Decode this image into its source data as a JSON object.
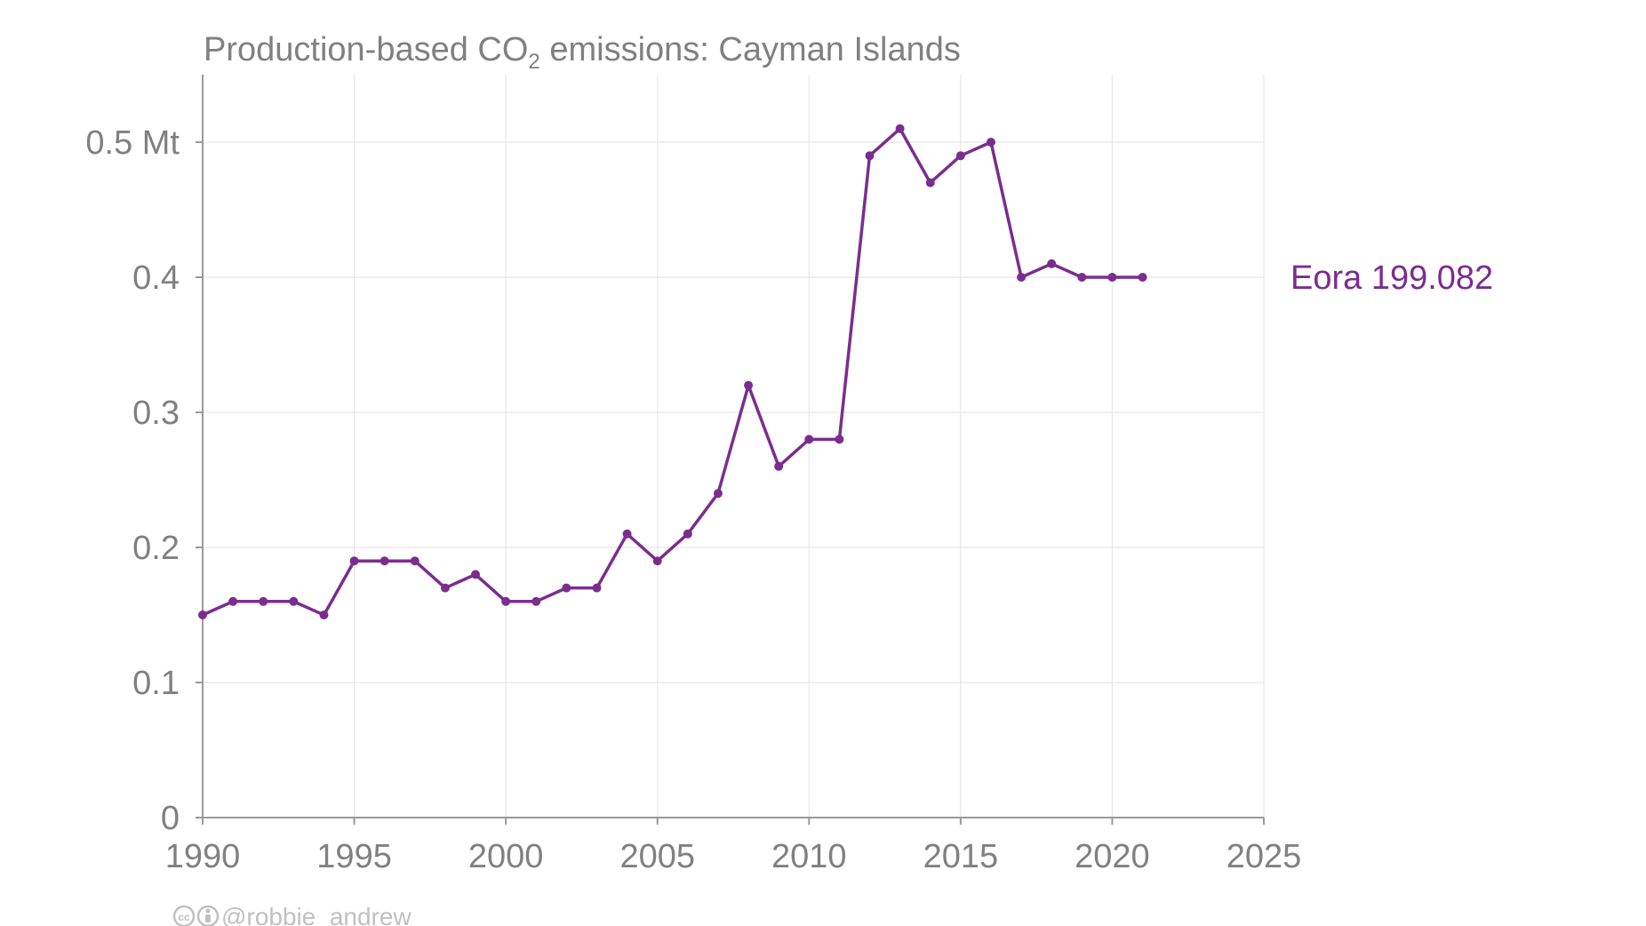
{
  "chart_data": {
    "type": "line",
    "title": {
      "prefix": "Production-based CO",
      "subscript": "2",
      "suffix": " emissions: Cayman Islands"
    },
    "xlim": [
      1990,
      2025
    ],
    "ylim": [
      0,
      0.55
    ],
    "x_ticks": [
      1990,
      1995,
      2000,
      2005,
      2010,
      2015,
      2020,
      2025
    ],
    "x_tick_labels": [
      "1990",
      "1995",
      "2000",
      "2005",
      "2010",
      "2015",
      "2020",
      "2025"
    ],
    "y_ticks": [
      0,
      0.1,
      0.2,
      0.3,
      0.4,
      0.5
    ],
    "y_tick_labels": [
      "0",
      "0.1",
      "0.2",
      "0.3",
      "0.4",
      "0.5 Mt"
    ],
    "grid": true,
    "series": [
      {
        "name": "Eora 199.082",
        "color": "#7b2d8e",
        "x": [
          1990,
          1991,
          1992,
          1993,
          1994,
          1995,
          1996,
          1997,
          1998,
          1999,
          2000,
          2001,
          2002,
          2003,
          2004,
          2005,
          2006,
          2007,
          2008,
          2009,
          2010,
          2011,
          2012,
          2013,
          2014,
          2015,
          2016,
          2017,
          2018,
          2019,
          2020,
          2021
        ],
        "values": [
          0.15,
          0.16,
          0.16,
          0.16,
          0.15,
          0.19,
          0.19,
          0.19,
          0.17,
          0.18,
          0.16,
          0.16,
          0.17,
          0.17,
          0.21,
          0.19,
          0.21,
          0.24,
          0.32,
          0.26,
          0.28,
          0.28,
          0.49,
          0.51,
          0.47,
          0.49,
          0.5,
          0.4,
          0.41,
          0.4,
          0.4,
          0.4
        ]
      }
    ]
  },
  "credit": {
    "icons": [
      "cc-icon",
      "attribution-icon"
    ],
    "text": "@robbie_andrew"
  }
}
